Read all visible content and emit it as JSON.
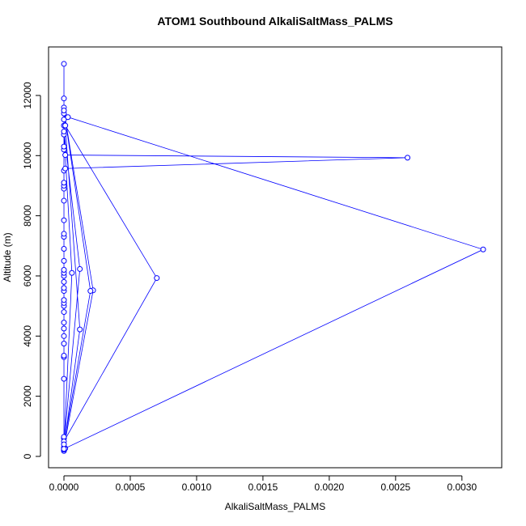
{
  "chart_data": {
    "type": "line",
    "title": "ATOM1 Southbound AlkaliSaltMass_PALMS",
    "x_label": "AlkaliSaltMass_PALMS",
    "y_label": "Altitude (m)",
    "x": [
      0,
      0,
      0,
      0,
      0,
      0,
      0,
      0,
      0,
      0,
      0,
      0,
      0,
      0,
      0,
      0,
      0,
      0,
      0,
      0,
      0,
      0,
      0,
      0,
      0,
      0,
      0,
      0,
      0,
      0,
      0,
      0,
      0,
      1e-05,
      0.00259,
      1e-05,
      0,
      0,
      0,
      0,
      0,
      3e-05,
      0.00316,
      1e-05,
      0,
      0.0007,
      1e-05,
      0,
      0,
      0.00012,
      0,
      0.00022,
      0,
      0.0002,
      0,
      0.00012,
      0,
      6e-05,
      0,
      0,
      0
    ],
    "values": [
      200,
      250,
      180,
      220,
      600,
      650,
      2580,
      3300,
      3350,
      3750,
      4000,
      4250,
      4450,
      4800,
      5000,
      5100,
      5200,
      5500,
      5600,
      5800,
      6000,
      6100,
      6200,
      6500,
      6900,
      7300,
      7400,
      7850,
      8500,
      8900,
      9000,
      9100,
      9500,
      9570,
      9930,
      10020,
      10200,
      10300,
      10700,
      11000,
      11200,
      11280,
      6880,
      270,
      500,
      5930,
      11000,
      11400,
      11600,
      4220,
      300,
      5520,
      11500,
      5500,
      400,
      6230,
      10800,
      6100,
      250,
      11900,
      13050
    ],
    "color": "#0000ff",
    "xlim": [
      -0.000116,
      0.0033
    ],
    "ylim": [
      -377,
      13613
    ],
    "xticks": [
      {
        "value": 0,
        "label": "0.0000"
      },
      {
        "value": 0.0005,
        "label": "0.0005"
      },
      {
        "value": 0.001,
        "label": "0.0010"
      },
      {
        "value": 0.0015,
        "label": "0.0015"
      },
      {
        "value": 0.002,
        "label": "0.0020"
      },
      {
        "value": 0.0025,
        "label": "0.0025"
      },
      {
        "value": 0.003,
        "label": "0.0030"
      }
    ],
    "yticks": [
      0,
      2000,
      4000,
      6000,
      8000,
      10000,
      12000
    ]
  }
}
